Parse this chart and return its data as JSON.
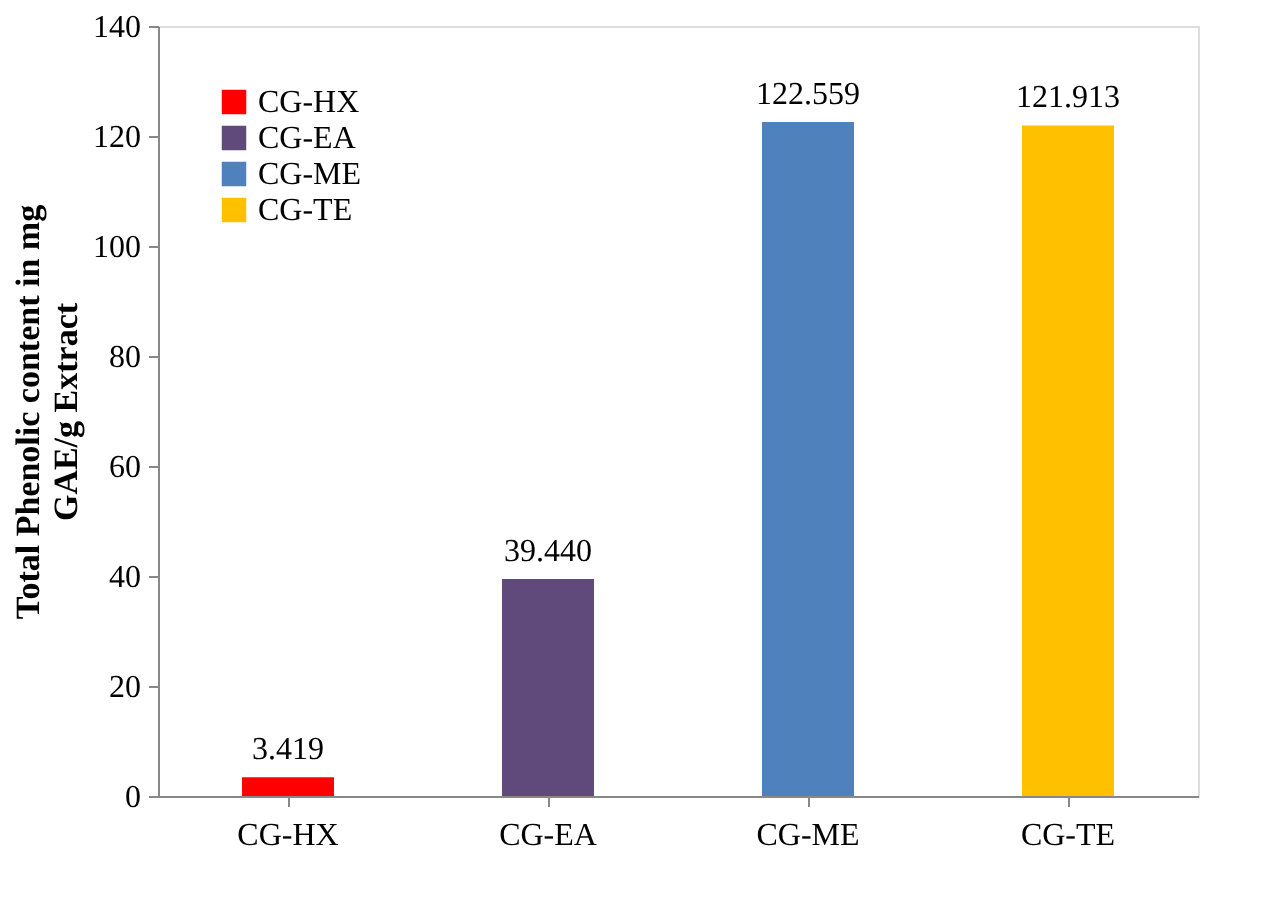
{
  "chart_data": {
    "type": "bar",
    "categories": [
      "CG-HX",
      "CG-EA",
      "CG-ME",
      "CG-TE"
    ],
    "series": [
      {
        "name": "CG-HX",
        "color": "#ff0000",
        "values": [
          3.419,
          null,
          null,
          null
        ],
        "value_labels": [
          "3.419",
          null,
          null,
          null
        ]
      },
      {
        "name": "CG-EA",
        "color": "#604a7b",
        "values": [
          null,
          39.44,
          null,
          null
        ],
        "value_labels": [
          null,
          "39.440",
          null,
          null
        ]
      },
      {
        "name": "CG-ME",
        "color": "#4f81bd",
        "values": [
          null,
          null,
          122.559,
          null
        ],
        "value_labels": [
          null,
          null,
          "122.559",
          null
        ]
      },
      {
        "name": "CG-TE",
        "color": "#ffc000",
        "values": [
          null,
          null,
          null,
          121.913
        ],
        "value_labels": [
          null,
          null,
          null,
          "121.913"
        ]
      }
    ],
    "ylabel": "Total Phenolic content in mg GAE/g Extract",
    "ylim": [
      0,
      140
    ],
    "yticks": [
      0,
      20,
      40,
      60,
      80,
      100,
      120,
      140
    ],
    "legend": "top left"
  }
}
